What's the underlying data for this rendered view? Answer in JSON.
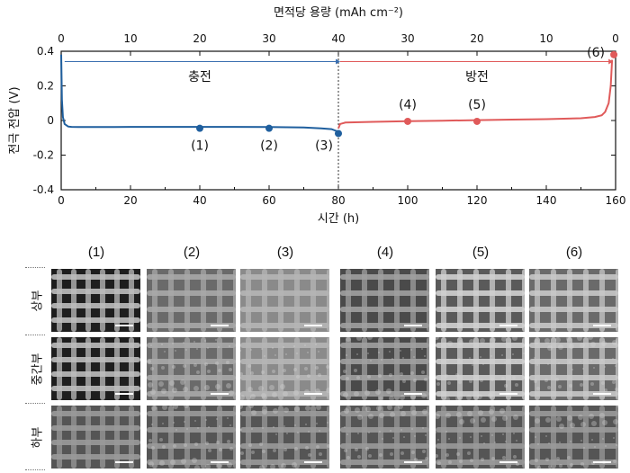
{
  "chart_data": {
    "type": "line",
    "title": "",
    "xlabel": "시간 (h)",
    "x2label": "면적당 용량 (mAh cm⁻²)",
    "ylabel": "전극 전압 (V)",
    "xlim": [
      0,
      160
    ],
    "ylim": [
      -0.4,
      0.4
    ],
    "xticks": [
      "0",
      "20",
      "40",
      "60",
      "80",
      "100",
      "120",
      "140",
      "160"
    ],
    "x2ticks": [
      "0",
      "10",
      "20",
      "30",
      "40",
      "30",
      "20",
      "10",
      "0"
    ],
    "yticks": [
      "0.4",
      "0.2",
      "0",
      "-0.2",
      "-0.4"
    ],
    "grid": false,
    "phase_labels": {
      "charge": "충전",
      "discharge": "방전"
    },
    "series": [
      {
        "role": "charge",
        "color": "#1f5f9e",
        "x": [
          0,
          0.2,
          0.5,
          1,
          2,
          3,
          5,
          10,
          20,
          30,
          40,
          50,
          60,
          70,
          75,
          78,
          80
        ],
        "y": [
          0.38,
          0.12,
          0.02,
          -0.02,
          -0.035,
          -0.037,
          -0.038,
          -0.038,
          -0.037,
          -0.037,
          -0.037,
          -0.037,
          -0.038,
          -0.04,
          -0.045,
          -0.05,
          -0.065
        ]
      },
      {
        "role": "discharge",
        "color": "#e05a5a",
        "x": [
          80,
          80.5,
          82,
          90,
          100,
          110,
          120,
          130,
          140,
          150,
          154,
          156,
          157,
          158,
          158.6,
          159
        ],
        "y": [
          -0.045,
          -0.02,
          -0.012,
          -0.008,
          -0.004,
          -0.001,
          0.002,
          0.005,
          0.008,
          0.013,
          0.02,
          0.03,
          0.05,
          0.1,
          0.2,
          0.35
        ]
      }
    ],
    "markers": [
      {
        "label": "(1)",
        "x": 40,
        "y": -0.045,
        "color": "#1f5f9e"
      },
      {
        "label": "(2)",
        "x": 60,
        "y": -0.045,
        "color": "#1f5f9e"
      },
      {
        "label": "(3)",
        "x": 80,
        "y": -0.075,
        "color": "#1f5f9e"
      },
      {
        "label": "(4)",
        "x": 100,
        "y": -0.005,
        "color": "#e05a5a"
      },
      {
        "label": "(5)",
        "x": 120,
        "y": -0.005,
        "color": "#e05a5a"
      },
      {
        "label": "(6)",
        "x": 159.5,
        "y": 0.38,
        "color": "#e05a5a"
      }
    ],
    "phase_divider_x": 80,
    "reference_line_y": 0.34
  },
  "sem_grid": {
    "columns": [
      "(1)",
      "(2)",
      "(3)",
      "(4)",
      "(5)",
      "(6)"
    ],
    "rows": [
      "상부",
      "중간부",
      "하부"
    ]
  }
}
